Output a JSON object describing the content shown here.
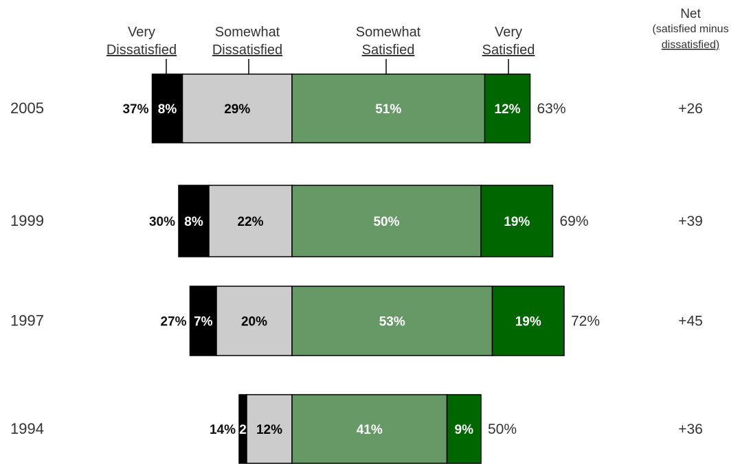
{
  "chart_data": {
    "type": "bar",
    "stacked": "diverging",
    "legend_placement": "top",
    "grid": false,
    "categories": [
      "2005",
      "1999",
      "1997",
      "1994"
    ],
    "series": [
      {
        "name": "Very Dissatisfied",
        "label_lines": [
          "Very",
          "Dissatisfied"
        ],
        "side": "negative",
        "color": "#000000",
        "text_color": "#ffffff",
        "values": [
          8,
          8,
          7,
          2
        ],
        "labels": [
          "8%",
          "8%",
          "7%",
          "2"
        ]
      },
      {
        "name": "Somewhat Dissatisfied",
        "label_lines": [
          "Somewhat",
          "Dissatisfied"
        ],
        "side": "negative",
        "color": "#cccccc",
        "text_color": "#000000",
        "values": [
          29,
          22,
          20,
          12
        ],
        "labels": [
          "29%",
          "22%",
          "20%",
          "12%"
        ]
      },
      {
        "name": "Somewhat Satisfied",
        "label_lines": [
          "Somewhat",
          "Satisfied"
        ],
        "side": "positive",
        "color": "#669966",
        "text_color": "#ffffff",
        "values": [
          51,
          50,
          53,
          41
        ],
        "labels": [
          "51%",
          "50%",
          "53%",
          "41%"
        ]
      },
      {
        "name": "Very Satisfied",
        "label_lines": [
          "Very",
          "Satisfied"
        ],
        "side": "positive",
        "color": "#006600",
        "text_color": "#ffffff",
        "values": [
          12,
          19,
          19,
          9
        ],
        "labels": [
          "12%",
          "19%",
          "19%",
          "9%"
        ]
      }
    ],
    "dissatisfied_totals": [
      "37%",
      "30%",
      "27%",
      "14%"
    ],
    "satisfied_totals": [
      "63%",
      "69%",
      "72%",
      "50%"
    ],
    "net_header": [
      "Net",
      "(satisfied minus",
      "dissatisfied)"
    ],
    "net_values": [
      "+26",
      "+39",
      "+45",
      "+36"
    ]
  }
}
